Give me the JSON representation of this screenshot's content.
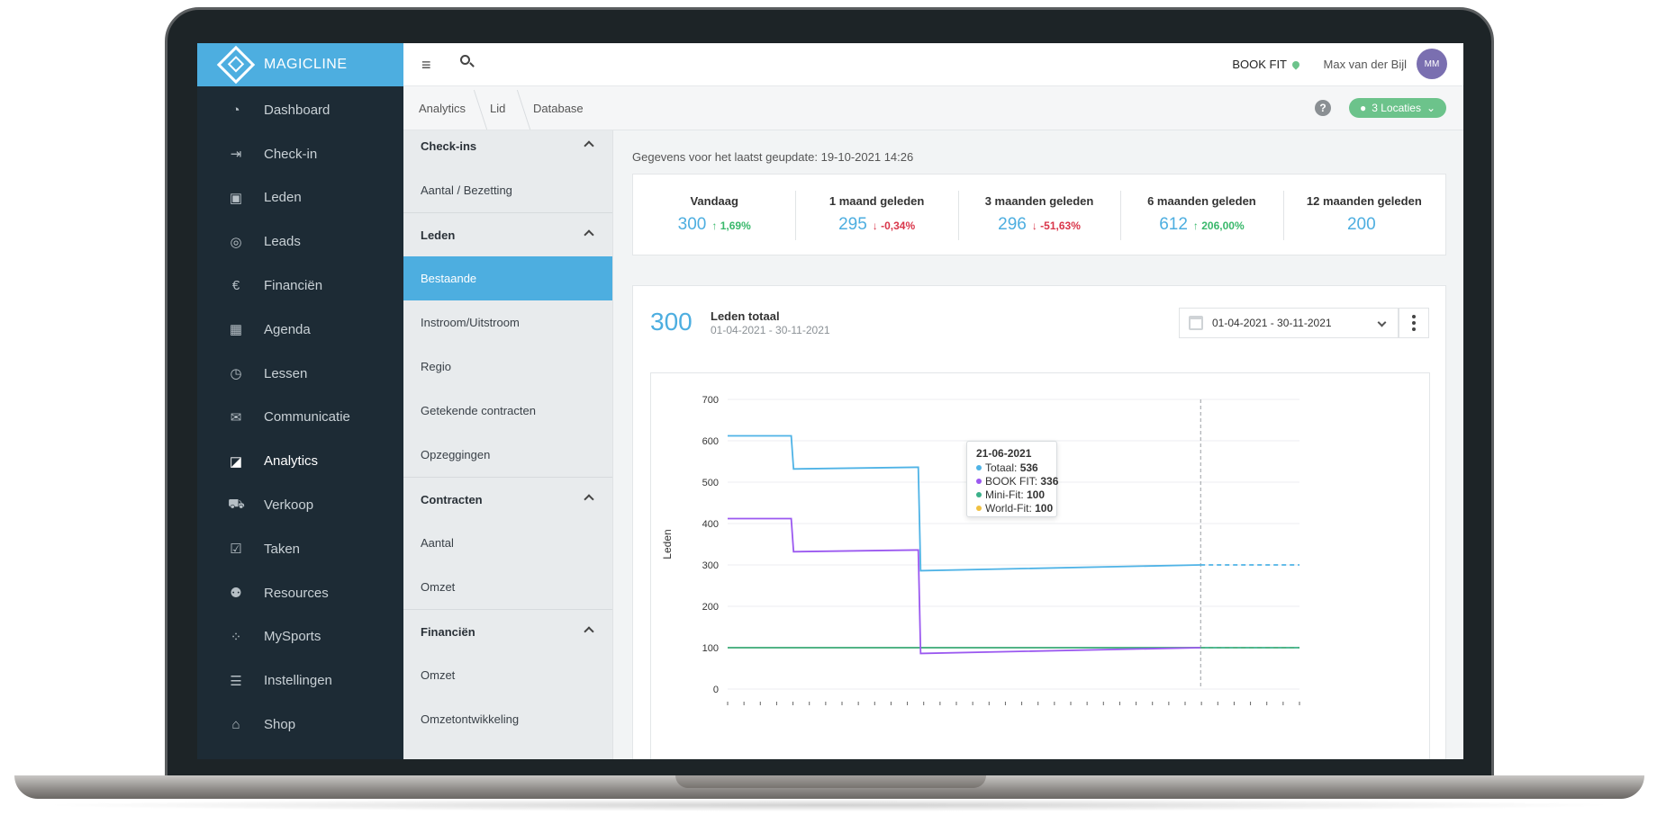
{
  "app": {
    "logo_text": "MAGICLINE"
  },
  "sidebar": {
    "items": [
      {
        "label": "Dashboard",
        "icon": "dashboard-icon",
        "glyph": "◔"
      },
      {
        "label": "Check-in",
        "icon": "check-in-icon",
        "glyph": "⇥"
      },
      {
        "label": "Leden",
        "icon": "members-icon",
        "glyph": "▣"
      },
      {
        "label": "Leads",
        "icon": "leads-icon",
        "glyph": "◎"
      },
      {
        "label": "Financiën",
        "icon": "euro-icon",
        "glyph": "€"
      },
      {
        "label": "Agenda",
        "icon": "calendar-icon",
        "glyph": "▦"
      },
      {
        "label": "Lessen",
        "icon": "stopwatch-icon",
        "glyph": "◷"
      },
      {
        "label": "Communicatie",
        "icon": "chat-icon",
        "glyph": "✉"
      },
      {
        "label": "Analytics",
        "icon": "chart-icon",
        "glyph": "◪",
        "active": true
      },
      {
        "label": "Verkoop",
        "icon": "cart-icon",
        "glyph": "⛟"
      },
      {
        "label": "Taken",
        "icon": "checkbox-icon",
        "glyph": "☑"
      },
      {
        "label": "Resources",
        "icon": "people-icon",
        "glyph": "⚉"
      },
      {
        "label": "MySports",
        "icon": "mysports-icon",
        "glyph": "⁘"
      },
      {
        "label": "Instellingen",
        "icon": "sliders-icon",
        "glyph": "☰"
      },
      {
        "label": "Shop",
        "icon": "shop-icon",
        "glyph": "⌂"
      }
    ]
  },
  "topbar": {
    "studio": "BOOK FIT",
    "user_name": "Max van der Bijl",
    "avatar_initials": "MM"
  },
  "breadcrumb": [
    "Analytics",
    "Lid",
    "Database"
  ],
  "locations_label": "3 Locaties",
  "help_label": "?",
  "submenu": [
    {
      "type": "section",
      "label": "Check-ins"
    },
    {
      "type": "item",
      "label": "Aantal / Bezetting"
    },
    {
      "type": "section",
      "label": "Leden"
    },
    {
      "type": "item",
      "label": "Bestaande",
      "active": true
    },
    {
      "type": "item",
      "label": "Instroom/Uitstroom"
    },
    {
      "type": "item",
      "label": "Regio"
    },
    {
      "type": "item",
      "label": "Getekende contracten"
    },
    {
      "type": "item",
      "label": "Opzeggingen"
    },
    {
      "type": "section",
      "label": "Contracten"
    },
    {
      "type": "item",
      "label": "Aantal"
    },
    {
      "type": "item",
      "label": "Omzet"
    },
    {
      "type": "section",
      "label": "Financiën"
    },
    {
      "type": "item",
      "label": "Omzet"
    },
    {
      "type": "item",
      "label": "Omzetontwikkeling"
    }
  ],
  "updated_text": "Gegevens voor het laatst geupdate: 19-10-2021 14:26",
  "stats": [
    {
      "label": "Vandaag",
      "value": "300",
      "change": "↑ 1,69%",
      "direction": "up"
    },
    {
      "label": "1 maand geleden",
      "value": "295",
      "change": "↓ -0,34%",
      "direction": "down"
    },
    {
      "label": "3 maanden geleden",
      "value": "296",
      "change": "↓ -51,63%",
      "direction": "down"
    },
    {
      "label": "6 maanden geleden",
      "value": "612",
      "change": "↑ 206,00%",
      "direction": "up"
    },
    {
      "label": "12 maanden geleden",
      "value": "200",
      "change": "",
      "direction": ""
    }
  ],
  "panel": {
    "total": "300",
    "title": "Leden totaal",
    "subtitle": "01-04-2021 - 30-11-2021",
    "date_range": "01-04-2021 - 30-11-2021"
  },
  "tooltip": {
    "date": "21-06-2021",
    "rows": [
      {
        "name": "Totaal",
        "value": "536",
        "color": "#4fb3e6"
      },
      {
        "name": "BOOK FIT",
        "value": "336",
        "color": "#9b59f0"
      },
      {
        "name": "Mini-Fit",
        "value": "100",
        "color": "#3bb08a"
      },
      {
        "name": "World-Fit",
        "value": "100",
        "color": "#f0c040"
      }
    ]
  },
  "chart_data": {
    "type": "line",
    "ylabel": "Leden",
    "xlabel": "",
    "ylim": [
      0,
      700
    ],
    "yticks": [
      0,
      100,
      200,
      300,
      400,
      500,
      600,
      700
    ],
    "x": [
      "01-04-2021",
      "28-04-2021",
      "29-04-2021",
      "21-06-2021",
      "22-06-2021",
      "19-10-2021",
      "30-11-2021"
    ],
    "series": [
      {
        "name": "Totaal",
        "color": "#4fb3e6",
        "values": [
          612,
          612,
          532,
          536,
          286,
          300,
          300
        ],
        "projected_from": "19-10-2021"
      },
      {
        "name": "BOOK FIT",
        "color": "#9b59f0",
        "values": [
          412,
          412,
          332,
          336,
          86,
          100,
          null
        ]
      },
      {
        "name": "Mini-Fit",
        "color": "#3bb08a",
        "values": [
          100,
          100,
          100,
          100,
          100,
          100,
          100
        ]
      },
      {
        "name": "World-Fit",
        "color": "#f0c040",
        "values": [
          100,
          100,
          100,
          100,
          100,
          100,
          100
        ],
        "projected_from": "19-10-2021"
      }
    ],
    "today_marker": "19-10-2021",
    "grid": true
  }
}
